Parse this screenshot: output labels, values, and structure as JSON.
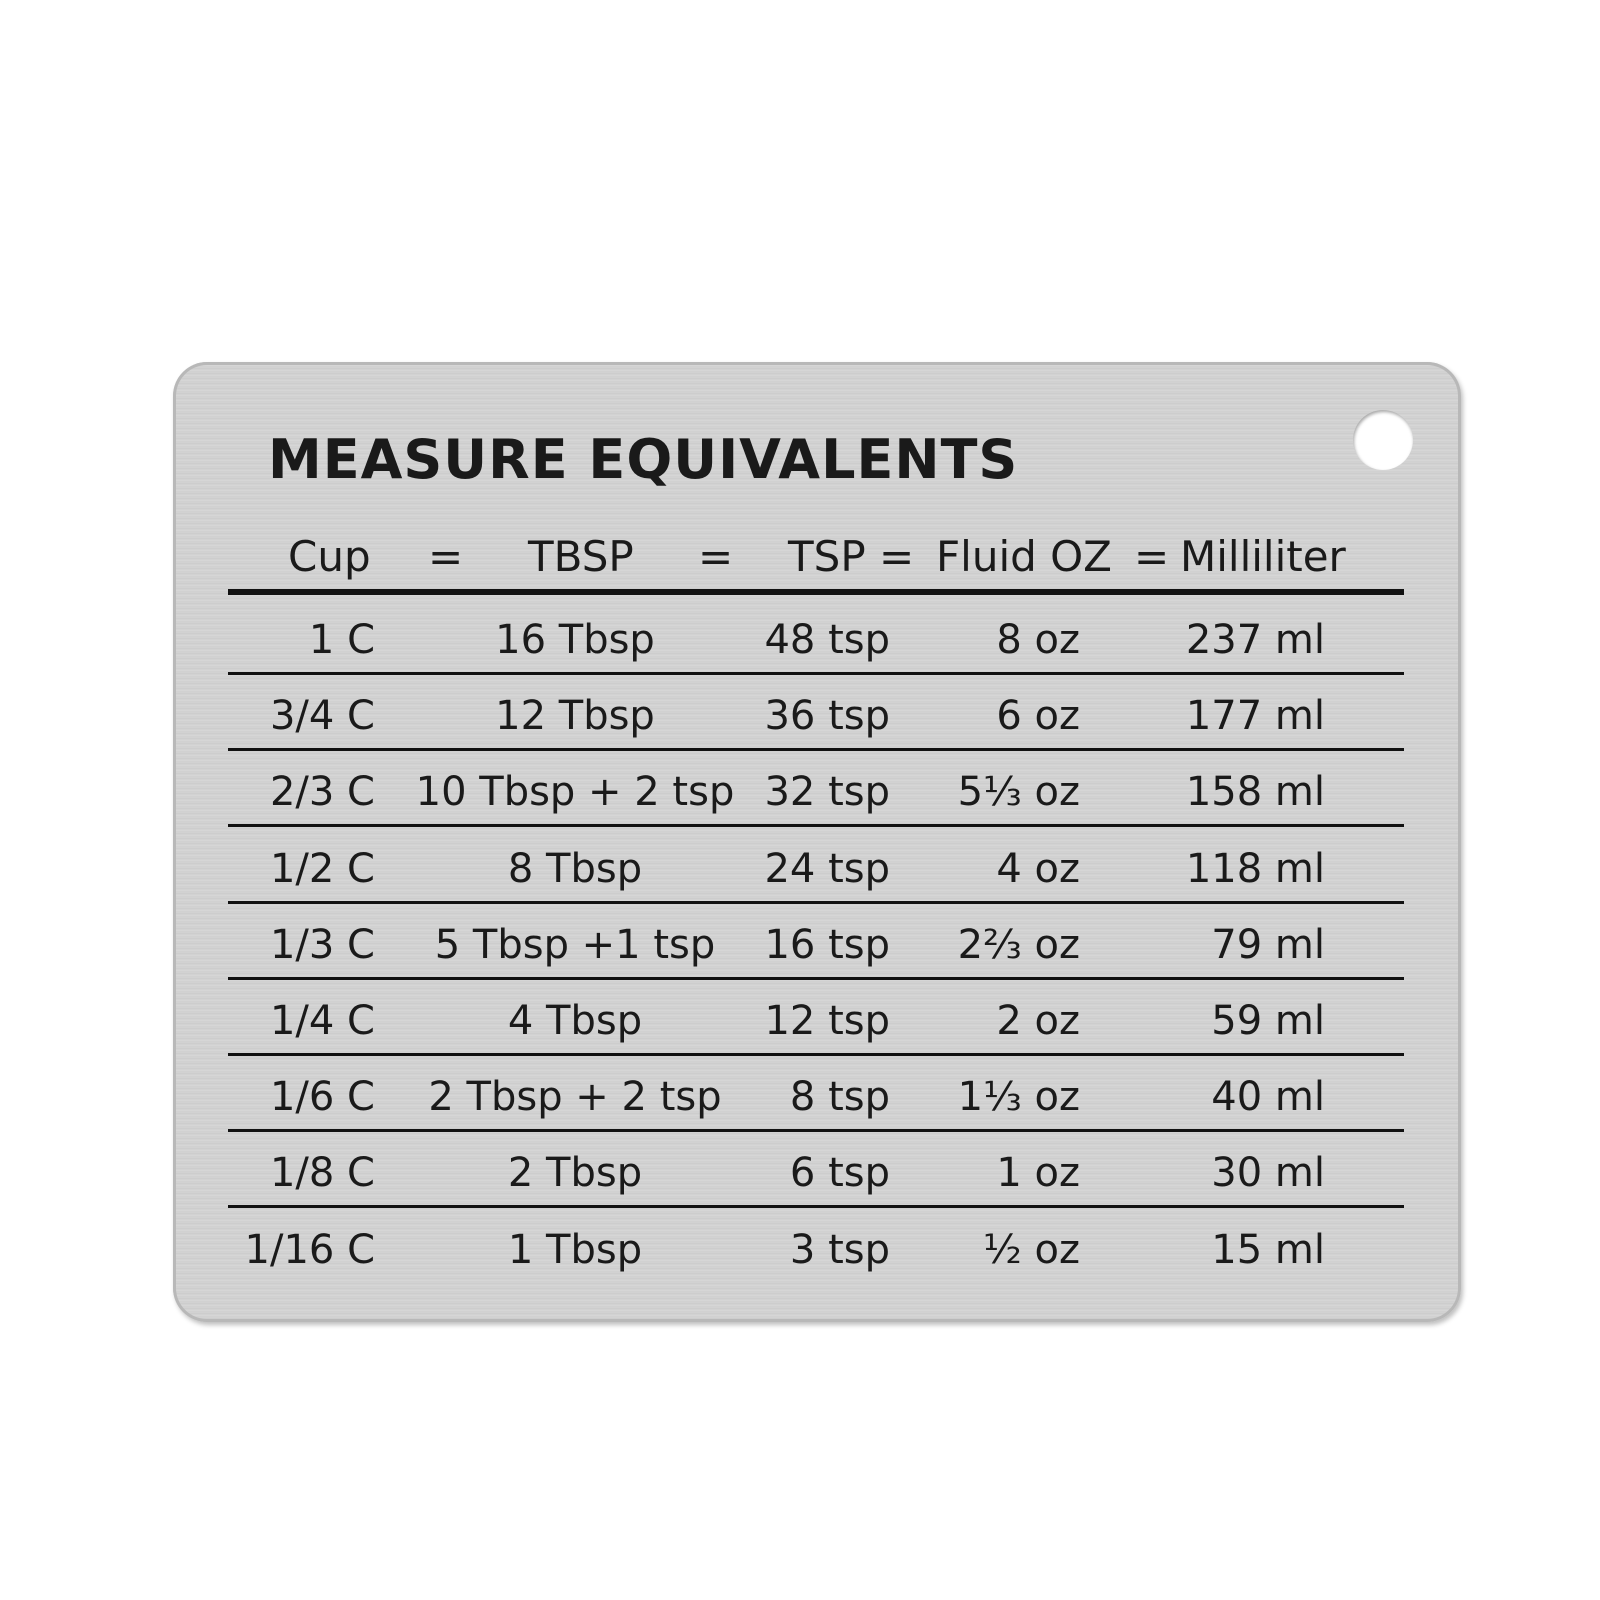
{
  "title": "MEASURE EQUIVALENTS",
  "headers": [
    "Cup",
    "=",
    "TBSP",
    "=",
    "TSP =",
    "Fluid OZ",
    "=",
    "Milliliter"
  ],
  "rows": [
    [
      "1 C",
      "16 Tbsp",
      "48 tsp",
      "8 oz",
      "237 ml"
    ],
    [
      "3/4 C",
      "12 Tbsp",
      "36 tsp",
      "6 oz",
      "177 ml"
    ],
    [
      "2/3 C",
      "10 Tbsp + 2 tsp",
      "32 tsp",
      "5⅓ oz",
      "158 ml"
    ],
    [
      "1/2 C",
      "8 Tbsp",
      "24 tsp",
      "4 oz",
      "118 ml"
    ],
    [
      "1/3 C",
      "5 Tbsp +1 tsp",
      "16 tsp",
      "2⅔ oz",
      "79 ml"
    ],
    [
      "1/4 C",
      "4 Tbsp",
      "12 tsp",
      "2 oz",
      "59 ml"
    ],
    [
      "1/6 C",
      "2 Tbsp + 2 tsp",
      "8 tsp",
      "1⅓ oz",
      "40 ml"
    ],
    [
      "1/8 C",
      "2 Tbsp",
      "6 tsp",
      "1 oz",
      "30 ml"
    ],
    [
      "1/16 C",
      "1 Tbsp",
      "3 tsp",
      "½ oz",
      "15 ml"
    ]
  ]
}
